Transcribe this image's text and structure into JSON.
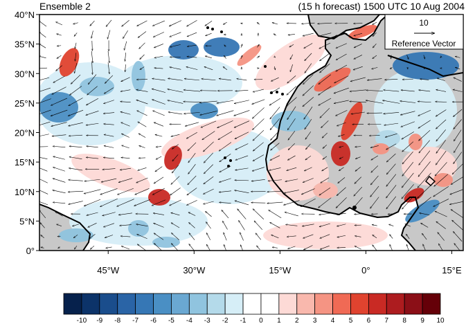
{
  "header": {
    "left_title": "Ensemble 2",
    "right_title": "(15 h forecast) 1500 UTC 10 Aug 2004"
  },
  "map": {
    "lon_range": [
      -57,
      17
    ],
    "lat_range": [
      0,
      40
    ],
    "lat_ticks": [
      {
        "value": 0,
        "label": "0°"
      },
      {
        "value": 5,
        "label": "5°N"
      },
      {
        "value": 10,
        "label": "10°N"
      },
      {
        "value": 15,
        "label": "15°N"
      },
      {
        "value": 20,
        "label": "20°N"
      },
      {
        "value": 25,
        "label": "25°N"
      },
      {
        "value": 30,
        "label": "30°N"
      },
      {
        "value": 35,
        "label": "35°N"
      },
      {
        "value": 40,
        "label": "40°N"
      }
    ],
    "lon_ticks": [
      {
        "value": -45,
        "label": "45°W"
      },
      {
        "value": -30,
        "label": "30°W"
      },
      {
        "value": -15,
        "label": "15°W"
      },
      {
        "value": 0,
        "label": "0°"
      },
      {
        "value": 15,
        "label": "15°E"
      }
    ],
    "land_color": "#c8c8c8",
    "reference_vector": {
      "magnitude": "10",
      "label": "Reference Vector"
    }
  },
  "colorbar": {
    "labels": [
      "-10",
      "-9",
      "-8",
      "-7",
      "-6",
      "-5",
      "-4",
      "-3",
      "-2",
      "-1",
      "0",
      "1",
      "2",
      "3",
      "4",
      "5",
      "6",
      "7",
      "8",
      "9",
      "10"
    ],
    "colors": [
      "#06214c",
      "#0c3369",
      "#1a4d8c",
      "#2a64a6",
      "#3677b5",
      "#4a8fc4",
      "#6aa8d2",
      "#90c4df",
      "#b4daea",
      "#d6eef7",
      "#ffffff",
      "#ffffff",
      "#fddad6",
      "#f9b8ad",
      "#f59483",
      "#f06a55",
      "#e0432f",
      "#c92a24",
      "#ad1c1f",
      "#8b0f17",
      "#650008"
    ]
  },
  "chart_data": {
    "type": "heatmap",
    "title": "(15 h forecast) 1500 UTC 10 Aug 2004",
    "subtitle": "Ensemble 2",
    "x_axis_ticks": [
      "45°W",
      "30°W",
      "15°W",
      "0°",
      "15°E"
    ],
    "y_axis_ticks": [
      "0°",
      "5°N",
      "10°N",
      "15°N",
      "20°N",
      "25°N",
      "30°N",
      "35°N",
      "40°N"
    ],
    "value_range": [
      -10,
      10
    ],
    "reference_vector": "10",
    "features": [
      {
        "kind": "positive",
        "lon": -49,
        "lat": 32,
        "value": 6
      },
      {
        "kind": "positive",
        "lon": -36,
        "lat": 17,
        "value": 8
      },
      {
        "kind": "positive",
        "lon": -38,
        "lat": 10,
        "value": 9
      },
      {
        "kind": "positive",
        "lon": -2,
        "lat": 16.5,
        "value": 8
      },
      {
        "kind": "positive",
        "lon": -1,
        "lat": 23.5,
        "value": 7
      },
      {
        "kind": "positive",
        "lon": -7,
        "lat": 29,
        "value": 6
      },
      {
        "kind": "positive",
        "lon": 10,
        "lat": 9.5,
        "value": 9
      },
      {
        "kind": "positive",
        "lon": -1,
        "lat": 38.3,
        "value": 6
      },
      {
        "kind": "positive",
        "lon": -12,
        "lat": 32,
        "value": 5
      },
      {
        "kind": "positive",
        "lon": 3,
        "lat": 6.5,
        "value": 4
      },
      {
        "kind": "negative",
        "lon": -34,
        "lat": 36,
        "value": -6
      },
      {
        "kind": "negative",
        "lon": -27,
        "lat": 36,
        "value": -6
      },
      {
        "kind": "negative",
        "lon": -55,
        "lat": 26,
        "value": -5
      },
      {
        "kind": "negative",
        "lon": -29,
        "lat": 25,
        "value": -5
      },
      {
        "kind": "negative",
        "lon": 8,
        "lat": 33.5,
        "value": -5
      },
      {
        "kind": "negative",
        "lon": 14,
        "lat": 33.5,
        "value": -6
      },
      {
        "kind": "negative",
        "lon": -43,
        "lat": 3,
        "value": -4
      },
      {
        "kind": "negative",
        "lon": 10,
        "lat": 5,
        "value": -5
      }
    ]
  }
}
